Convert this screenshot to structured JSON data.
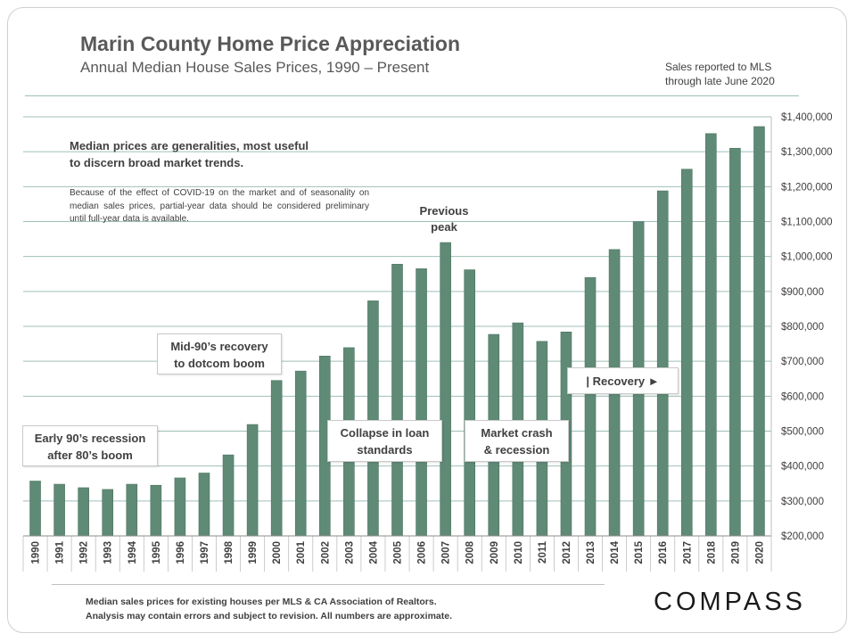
{
  "header": {
    "title": "Marin County Home Price Appreciation",
    "subtitle": "Annual Median House Sales Prices, 1990 – Present",
    "mls_note_line1": "Sales reported to MLS",
    "mls_note_line2": "through late June 2020"
  },
  "notes": {
    "main": "Median prices are generalities, most useful to discern broad market trends.",
    "detail": "Because of the effect of COVID-19 on the market and of seasonality on median sales prices, partial-year data should be considered preliminary until full-year data is available."
  },
  "annotations": {
    "peak_line1": "Previous",
    "peak_line2": "peak",
    "early90s_line1": "Early 90’s recession",
    "early90s_line2": "after 80’s boom",
    "mid90s_line1": "Mid-90’s recovery",
    "mid90s_line2": "to dotcom boom",
    "collapse_line1": "Collapse in loan",
    "collapse_line2": "standards",
    "crash_line1": "Market crash",
    "crash_line2": "& recession",
    "recovery": "| Recovery ►"
  },
  "footer": {
    "line1": "Median sales prices for existing houses per MLS & CA Association of Realtors.",
    "line2": "Analysis may contain errors and subject to revision. All numbers are approximate."
  },
  "logo": "COMPASS",
  "colors": {
    "bar": "#5f8a76",
    "bar_edge": "#4d7564",
    "grid": "#9fbfb8",
    "text": "#404040"
  },
  "chart_data": {
    "type": "bar",
    "categories": [
      "1990",
      "1991",
      "1992",
      "1993",
      "1994",
      "1995",
      "1996",
      "1997",
      "1998",
      "1999",
      "2000",
      "2001",
      "2002",
      "2003",
      "2004",
      "2005",
      "2006",
      "2007",
      "2008",
      "2009",
      "2010",
      "2011",
      "2012",
      "2013",
      "2014",
      "2015",
      "2016",
      "2017",
      "2018",
      "2019",
      "2020"
    ],
    "values": [
      357000,
      348000,
      338000,
      333000,
      348000,
      345000,
      366000,
      380000,
      432000,
      519000,
      645000,
      672000,
      715000,
      739000,
      873000,
      978000,
      965000,
      1040000,
      962000,
      777000,
      810000,
      757000,
      784000,
      940000,
      1020000,
      1100000,
      1188000,
      1250000,
      1352000,
      1310000,
      1372000
    ],
    "ylim": [
      200000,
      1400000
    ],
    "ytick_values": [
      200000,
      300000,
      400000,
      500000,
      600000,
      700000,
      800000,
      900000,
      1000000,
      1100000,
      1200000,
      1300000,
      1400000
    ],
    "ytick_labels": [
      "$200,000",
      "$300,000",
      "$400,000",
      "$500,000",
      "$600,000",
      "$700,000",
      "$800,000",
      "$900,000",
      "$1,000,000",
      "$1,100,000",
      "$1,200,000",
      "$1,300,000",
      "$1,400,000"
    ],
    "grid": true,
    "y_axis_side": "right"
  }
}
